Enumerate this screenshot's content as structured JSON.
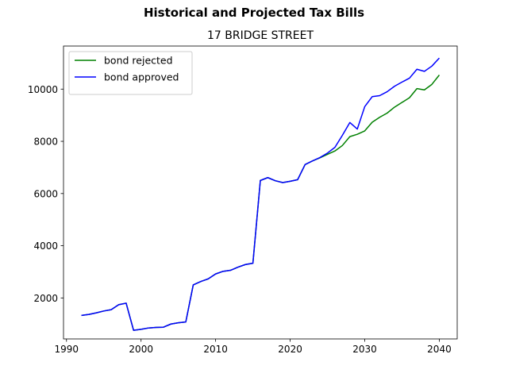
{
  "chart_data": {
    "type": "line",
    "title": "Historical and Projected Tax Bills",
    "subtitle": "17 BRIDGE STREET",
    "xlabel": "",
    "ylabel": "",
    "xlim": [
      1989.6,
      2042.4
    ],
    "ylim": [
      430,
      11650
    ],
    "xticks": [
      1990,
      2000,
      2010,
      2020,
      2030,
      2040
    ],
    "yticks": [
      2000,
      4000,
      6000,
      8000,
      10000
    ],
    "grid": false,
    "legend_position": "upper-left",
    "series": [
      {
        "name": "bond rejected",
        "color": "#008000",
        "points": [
          [
            1992,
            1330
          ],
          [
            1993,
            1370
          ],
          [
            1994,
            1430
          ],
          [
            1995,
            1500
          ],
          [
            1996,
            1550
          ],
          [
            1997,
            1740
          ],
          [
            1998,
            1800
          ],
          [
            1999,
            760
          ],
          [
            2000,
            800
          ],
          [
            2001,
            850
          ],
          [
            2002,
            870
          ],
          [
            2003,
            880
          ],
          [
            2004,
            1000
          ],
          [
            2005,
            1050
          ],
          [
            2006,
            1080
          ],
          [
            2007,
            2500
          ],
          [
            2008,
            2630
          ],
          [
            2009,
            2730
          ],
          [
            2010,
            2920
          ],
          [
            2011,
            3020
          ],
          [
            2012,
            3060
          ],
          [
            2013,
            3180
          ],
          [
            2014,
            3280
          ],
          [
            2015,
            3330
          ],
          [
            2016,
            6500
          ],
          [
            2017,
            6610
          ],
          [
            2018,
            6490
          ],
          [
            2019,
            6420
          ],
          [
            2020,
            6470
          ],
          [
            2021,
            6530
          ],
          [
            2022,
            7110
          ],
          [
            2023,
            7250
          ],
          [
            2024,
            7370
          ],
          [
            2025,
            7500
          ],
          [
            2026,
            7630
          ],
          [
            2027,
            7840
          ],
          [
            2028,
            8180
          ],
          [
            2029,
            8270
          ],
          [
            2030,
            8400
          ],
          [
            2031,
            8730
          ],
          [
            2032,
            8920
          ],
          [
            2033,
            9080
          ],
          [
            2034,
            9310
          ],
          [
            2035,
            9490
          ],
          [
            2036,
            9670
          ],
          [
            2037,
            10020
          ],
          [
            2038,
            9970
          ],
          [
            2039,
            10180
          ],
          [
            2040,
            10540
          ]
        ]
      },
      {
        "name": "bond approved",
        "color": "#0000ff",
        "points": [
          [
            1992,
            1330
          ],
          [
            1993,
            1370
          ],
          [
            1994,
            1430
          ],
          [
            1995,
            1500
          ],
          [
            1996,
            1550
          ],
          [
            1997,
            1740
          ],
          [
            1998,
            1800
          ],
          [
            1999,
            760
          ],
          [
            2000,
            800
          ],
          [
            2001,
            850
          ],
          [
            2002,
            870
          ],
          [
            2003,
            880
          ],
          [
            2004,
            1000
          ],
          [
            2005,
            1050
          ],
          [
            2006,
            1080
          ],
          [
            2007,
            2500
          ],
          [
            2008,
            2630
          ],
          [
            2009,
            2730
          ],
          [
            2010,
            2920
          ],
          [
            2011,
            3020
          ],
          [
            2012,
            3060
          ],
          [
            2013,
            3180
          ],
          [
            2014,
            3280
          ],
          [
            2015,
            3330
          ],
          [
            2016,
            6500
          ],
          [
            2017,
            6610
          ],
          [
            2018,
            6490
          ],
          [
            2019,
            6420
          ],
          [
            2020,
            6470
          ],
          [
            2021,
            6530
          ],
          [
            2022,
            7110
          ],
          [
            2023,
            7250
          ],
          [
            2024,
            7380
          ],
          [
            2025,
            7550
          ],
          [
            2026,
            7770
          ],
          [
            2027,
            8230
          ],
          [
            2028,
            8720
          ],
          [
            2029,
            8470
          ],
          [
            2030,
            9330
          ],
          [
            2031,
            9710
          ],
          [
            2032,
            9750
          ],
          [
            2033,
            9900
          ],
          [
            2034,
            10110
          ],
          [
            2035,
            10270
          ],
          [
            2036,
            10420
          ],
          [
            2037,
            10760
          ],
          [
            2038,
            10680
          ],
          [
            2039,
            10880
          ],
          [
            2040,
            11190
          ]
        ]
      }
    ]
  }
}
